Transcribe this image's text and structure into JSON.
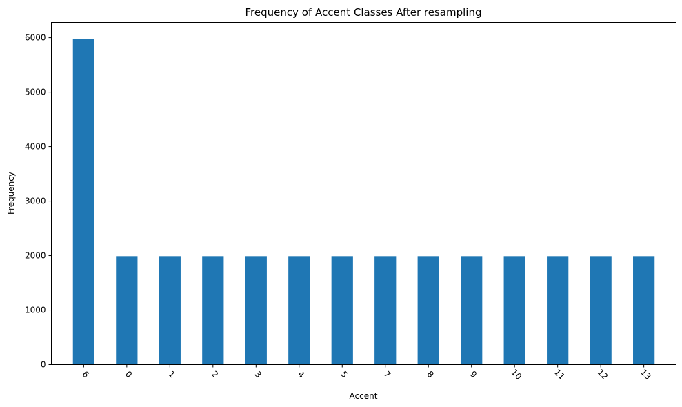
{
  "chart_data": {
    "type": "bar",
    "title": "Frequency of Accent Classes After resampling",
    "xlabel": "Accent",
    "ylabel": "Frequency",
    "categories": [
      "6",
      "0",
      "1",
      "2",
      "3",
      "4",
      "5",
      "7",
      "8",
      "9",
      "10",
      "11",
      "12",
      "13"
    ],
    "values": [
      5980,
      1990,
      1990,
      1990,
      1990,
      1990,
      1990,
      1990,
      1990,
      1990,
      1990,
      1990,
      1990,
      1990
    ],
    "ylim": [
      0,
      6280
    ],
    "yticks": [
      0,
      1000,
      2000,
      3000,
      4000,
      5000,
      6000
    ],
    "bar_color": "#1f77b4",
    "grid": false,
    "legend": false
  }
}
